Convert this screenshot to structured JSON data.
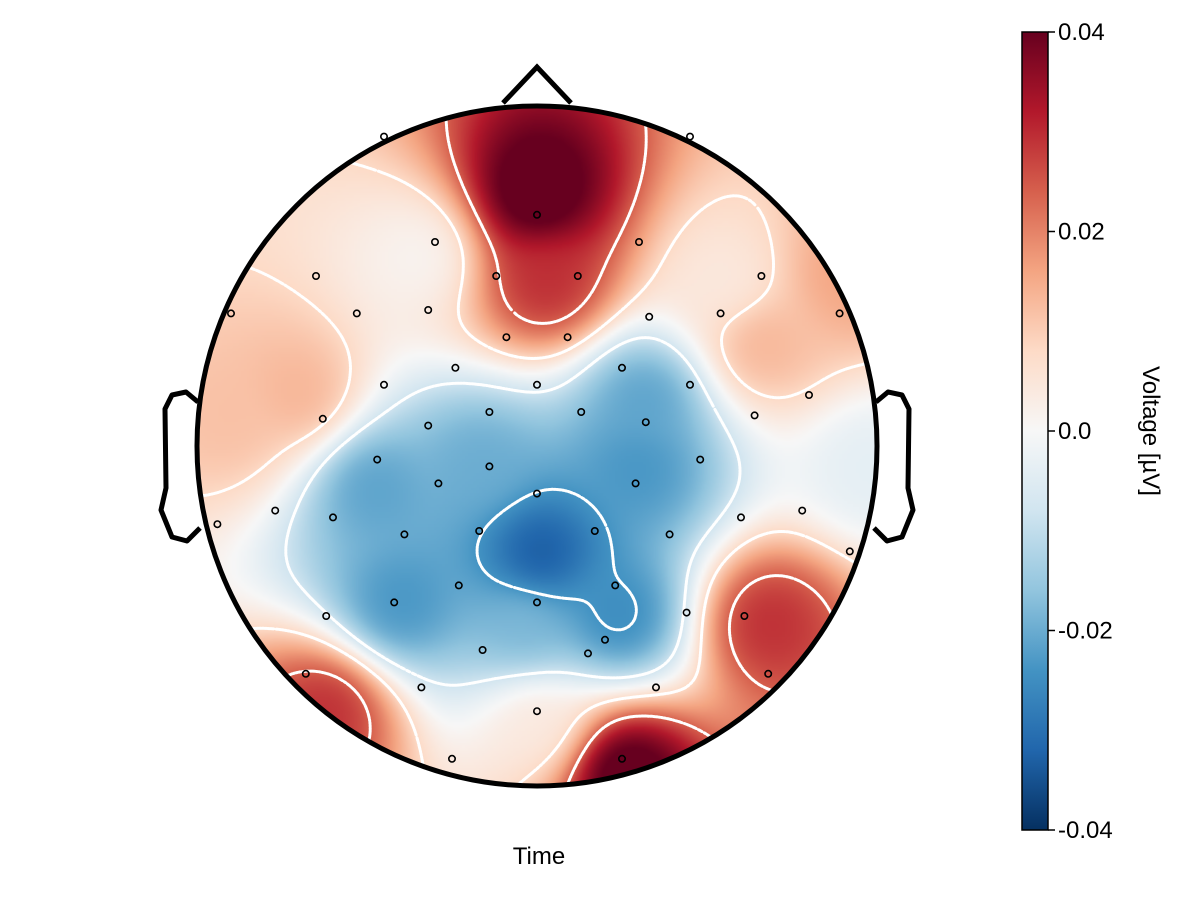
{
  "chart_data": {
    "type": "heatmap",
    "subtype": "eeg-topoplot",
    "title": "",
    "xlabel": "Time",
    "colorbar": {
      "label": "Voltage [µV]",
      "range": [
        -0.04,
        0.04
      ],
      "ticks": [
        -0.04,
        -0.02,
        0.0,
        0.02,
        0.04
      ],
      "tick_labels": [
        "-0.04",
        "-0.02",
        "0.0",
        "0.02",
        "0.04"
      ],
      "colormap": "RdBu_r",
      "colors": [
        "#053061",
        "#2166ac",
        "#4393c3",
        "#92c5de",
        "#d1e5f0",
        "#f7f7f7",
        "#fddbc7",
        "#f4a582",
        "#d6604d",
        "#b2182b",
        "#67001f"
      ]
    },
    "contour_levels": [
      -0.024,
      -0.008,
      0.008,
      0.024
    ],
    "contour_style": "dotted white",
    "sources": [
      {
        "x": 0.0,
        "y": 0.74,
        "value": 0.045
      },
      {
        "x": 0.03,
        "y": 0.48,
        "value": 0.03
      },
      {
        "x": -0.34,
        "y": 0.56,
        "value": 0.001
      },
      {
        "x": 0.56,
        "y": 0.48,
        "value": 0.004
      },
      {
        "x": -0.7,
        "y": 0.15,
        "value": 0.014
      },
      {
        "x": 0.66,
        "y": 0.3,
        "value": 0.014
      },
      {
        "x": 0.91,
        "y": 0.5,
        "value": 0.016
      },
      {
        "x": -0.48,
        "y": -0.12,
        "value": -0.022
      },
      {
        "x": -0.17,
        "y": -0.06,
        "value": -0.02
      },
      {
        "x": 0.01,
        "y": -0.32,
        "value": -0.035
      },
      {
        "x": 0.24,
        "y": -0.5,
        "value": -0.026
      },
      {
        "x": 0.32,
        "y": 0.14,
        "value": -0.022
      },
      {
        "x": 0.3,
        "y": -0.06,
        "value": -0.024
      },
      {
        "x": -0.4,
        "y": -0.46,
        "value": -0.024
      },
      {
        "x": -0.04,
        "y": -0.52,
        "value": -0.018
      },
      {
        "x": 0.68,
        "y": -0.52,
        "value": 0.03
      },
      {
        "x": 0.26,
        "y": -0.96,
        "value": 0.045
      },
      {
        "x": -0.62,
        "y": -0.78,
        "value": 0.03
      },
      {
        "x": -0.9,
        "y": 0.08,
        "value": 0.012
      },
      {
        "x": 0.98,
        "y": -0.06,
        "value": -0.004
      },
      {
        "x": 0.0,
        "y": -0.82,
        "value": 0.004
      }
    ],
    "electrodes": [
      [
        0.0,
        0.68
      ],
      [
        -0.3,
        0.6
      ],
      [
        0.3,
        0.6
      ],
      [
        -0.65,
        0.5
      ],
      [
        0.66,
        0.5
      ],
      [
        -0.12,
        0.5
      ],
      [
        0.12,
        0.5
      ],
      [
        -0.9,
        0.39
      ],
      [
        -0.53,
        0.39
      ],
      [
        -0.32,
        0.4
      ],
      [
        0.33,
        0.38
      ],
      [
        0.54,
        0.39
      ],
      [
        0.89,
        0.39
      ],
      [
        -0.09,
        0.32
      ],
      [
        0.09,
        0.32
      ],
      [
        -0.24,
        0.23
      ],
      [
        0.25,
        0.23
      ],
      [
        0.0,
        0.18
      ],
      [
        -0.45,
        0.18
      ],
      [
        0.45,
        0.18
      ],
      [
        0.8,
        0.15
      ],
      [
        -0.63,
        0.08
      ],
      [
        -0.32,
        0.06
      ],
      [
        -0.14,
        0.1
      ],
      [
        0.13,
        0.1
      ],
      [
        0.32,
        0.07
      ],
      [
        0.64,
        0.09
      ],
      [
        -0.47,
        -0.04
      ],
      [
        0.48,
        -0.04
      ],
      [
        -0.14,
        -0.06
      ],
      [
        0.0,
        -0.14
      ],
      [
        -0.29,
        -0.11
      ],
      [
        0.29,
        -0.11
      ],
      [
        -0.94,
        -0.23
      ],
      [
        -0.77,
        -0.19
      ],
      [
        -0.6,
        -0.21
      ],
      [
        0.6,
        -0.21
      ],
      [
        0.78,
        -0.19
      ],
      [
        0.92,
        -0.31
      ],
      [
        -0.39,
        -0.26
      ],
      [
        -0.17,
        -0.25
      ],
      [
        0.17,
        -0.25
      ],
      [
        0.39,
        -0.26
      ],
      [
        -0.23,
        -0.41
      ],
      [
        0.23,
        -0.41
      ],
      [
        -0.42,
        -0.46
      ],
      [
        0.0,
        -0.46
      ],
      [
        -0.62,
        -0.5
      ],
      [
        0.61,
        -0.5
      ],
      [
        0.44,
        -0.49
      ],
      [
        0.2,
        -0.57
      ],
      [
        -0.16,
        -0.6
      ],
      [
        0.15,
        -0.61
      ],
      [
        -0.68,
        -0.67
      ],
      [
        0.68,
        -0.67
      ],
      [
        -0.34,
        -0.71
      ],
      [
        0.35,
        -0.71
      ],
      [
        0.0,
        -0.78
      ],
      [
        -0.25,
        -0.92
      ],
      [
        0.25,
        -0.92
      ],
      [
        -0.45,
        0.91
      ],
      [
        0.45,
        0.91
      ]
    ]
  }
}
